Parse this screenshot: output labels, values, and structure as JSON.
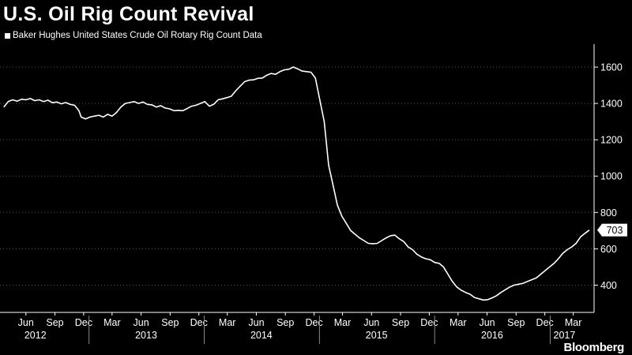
{
  "title": "U.S. Oil Rig Count Revival",
  "legend_label": "Baker Hughes United States Crude Oil Rotary Rig Count Data",
  "brand": "Bloomberg",
  "colors": {
    "background": "#000000",
    "line": "#ffffff",
    "grid": "#555555"
  },
  "chart_data": {
    "type": "line",
    "title": "U.S. Oil Rig Count Revival",
    "xlabel": "",
    "ylabel": "",
    "ylim": [
      250,
      1700
    ],
    "yticks": [
      400,
      600,
      800,
      1000,
      1200,
      1400,
      1600
    ],
    "grid": "horizontal dotted",
    "y_axis_position": "right",
    "last_value_label": "703",
    "month_ticks": [
      {
        "date": "2012-06",
        "label": "Jun"
      },
      {
        "date": "2012-09",
        "label": "Sep"
      },
      {
        "date": "2012-12",
        "label": "Dec"
      },
      {
        "date": "2013-03",
        "label": "Mar"
      },
      {
        "date": "2013-06",
        "label": "Jun"
      },
      {
        "date": "2013-09",
        "label": "Sep"
      },
      {
        "date": "2013-12",
        "label": "Dec"
      },
      {
        "date": "2014-03",
        "label": "Mar"
      },
      {
        "date": "2014-06",
        "label": "Jun"
      },
      {
        "date": "2014-09",
        "label": "Sep"
      },
      {
        "date": "2014-12",
        "label": "Dec"
      },
      {
        "date": "2015-03",
        "label": "Mar"
      },
      {
        "date": "2015-06",
        "label": "Jun"
      },
      {
        "date": "2015-09",
        "label": "Sep"
      },
      {
        "date": "2015-12",
        "label": "Dec"
      },
      {
        "date": "2016-03",
        "label": "Mar"
      },
      {
        "date": "2016-06",
        "label": "Jun"
      },
      {
        "date": "2016-09",
        "label": "Sep"
      },
      {
        "date": "2016-12",
        "label": "Dec"
      },
      {
        "date": "2017-03",
        "label": "Mar"
      }
    ],
    "year_labels": [
      {
        "date": "2012-07-15",
        "label": "2012"
      },
      {
        "date": "2013-07-01",
        "label": "2013"
      },
      {
        "date": "2014-07-01",
        "label": "2014"
      },
      {
        "date": "2015-07-01",
        "label": "2015"
      },
      {
        "date": "2016-07-01",
        "label": "2016"
      },
      {
        "date": "2017-02-15",
        "label": "2017"
      }
    ],
    "series": [
      {
        "points": [
          [
            "2012-04-06",
            1380
          ],
          [
            "2012-04-20",
            1410
          ],
          [
            "2012-05-04",
            1420
          ],
          [
            "2012-05-18",
            1412
          ],
          [
            "2012-06-01",
            1423
          ],
          [
            "2012-06-15",
            1420
          ],
          [
            "2012-06-29",
            1427
          ],
          [
            "2012-07-13",
            1415
          ],
          [
            "2012-07-27",
            1420
          ],
          [
            "2012-08-10",
            1410
          ],
          [
            "2012-08-24",
            1418
          ],
          [
            "2012-09-07",
            1404
          ],
          [
            "2012-09-21",
            1408
          ],
          [
            "2012-10-05",
            1398
          ],
          [
            "2012-10-19",
            1405
          ],
          [
            "2012-11-02",
            1395
          ],
          [
            "2012-11-16",
            1390
          ],
          [
            "2012-11-30",
            1360
          ],
          [
            "2012-12-07",
            1325
          ],
          [
            "2012-12-21",
            1315
          ],
          [
            "2013-01-04",
            1325
          ],
          [
            "2013-01-18",
            1330
          ],
          [
            "2013-02-01",
            1335
          ],
          [
            "2013-02-15",
            1325
          ],
          [
            "2013-03-01",
            1340
          ],
          [
            "2013-03-15",
            1330
          ],
          [
            "2013-03-29",
            1350
          ],
          [
            "2013-04-12",
            1380
          ],
          [
            "2013-04-26",
            1400
          ],
          [
            "2013-05-10",
            1405
          ],
          [
            "2013-05-24",
            1410
          ],
          [
            "2013-06-07",
            1400
          ],
          [
            "2013-06-21",
            1408
          ],
          [
            "2013-07-05",
            1395
          ],
          [
            "2013-07-19",
            1392
          ],
          [
            "2013-08-02",
            1380
          ],
          [
            "2013-08-16",
            1388
          ],
          [
            "2013-08-30",
            1375
          ],
          [
            "2013-09-13",
            1370
          ],
          [
            "2013-09-27",
            1360
          ],
          [
            "2013-10-11",
            1362
          ],
          [
            "2013-10-25",
            1360
          ],
          [
            "2013-11-08",
            1372
          ],
          [
            "2013-11-22",
            1385
          ],
          [
            "2013-12-06",
            1390
          ],
          [
            "2013-12-20",
            1400
          ],
          [
            "2014-01-03",
            1410
          ],
          [
            "2014-01-17",
            1385
          ],
          [
            "2014-01-31",
            1395
          ],
          [
            "2014-02-14",
            1420
          ],
          [
            "2014-02-28",
            1425
          ],
          [
            "2014-03-14",
            1432
          ],
          [
            "2014-03-28",
            1440
          ],
          [
            "2014-04-11",
            1470
          ],
          [
            "2014-04-25",
            1495
          ],
          [
            "2014-05-09",
            1520
          ],
          [
            "2014-05-23",
            1528
          ],
          [
            "2014-06-06",
            1530
          ],
          [
            "2014-06-20",
            1538
          ],
          [
            "2014-07-04",
            1540
          ],
          [
            "2014-07-18",
            1555
          ],
          [
            "2014-08-01",
            1565
          ],
          [
            "2014-08-15",
            1560
          ],
          [
            "2014-08-29",
            1575
          ],
          [
            "2014-09-12",
            1585
          ],
          [
            "2014-09-26",
            1588
          ],
          [
            "2014-10-10",
            1600
          ],
          [
            "2014-10-24",
            1590
          ],
          [
            "2014-11-07",
            1578
          ],
          [
            "2014-11-21",
            1575
          ],
          [
            "2014-12-05",
            1572
          ],
          [
            "2014-12-19",
            1540
          ],
          [
            "2015-01-02",
            1420
          ],
          [
            "2015-01-16",
            1300
          ],
          [
            "2015-01-30",
            1060
          ],
          [
            "2015-02-13",
            950
          ],
          [
            "2015-02-27",
            840
          ],
          [
            "2015-03-13",
            780
          ],
          [
            "2015-03-27",
            740
          ],
          [
            "2015-04-10",
            700
          ],
          [
            "2015-04-24",
            680
          ],
          [
            "2015-05-08",
            660
          ],
          [
            "2015-05-22",
            645
          ],
          [
            "2015-06-05",
            630
          ],
          [
            "2015-06-19",
            628
          ],
          [
            "2015-07-03",
            630
          ],
          [
            "2015-07-17",
            645
          ],
          [
            "2015-07-31",
            660
          ],
          [
            "2015-08-14",
            672
          ],
          [
            "2015-08-28",
            675
          ],
          [
            "2015-09-11",
            655
          ],
          [
            "2015-09-25",
            640
          ],
          [
            "2015-10-09",
            610
          ],
          [
            "2015-10-23",
            595
          ],
          [
            "2015-11-06",
            570
          ],
          [
            "2015-11-20",
            555
          ],
          [
            "2015-12-04",
            545
          ],
          [
            "2015-12-18",
            540
          ],
          [
            "2016-01-01",
            525
          ],
          [
            "2016-01-15",
            520
          ],
          [
            "2016-01-29",
            500
          ],
          [
            "2016-02-12",
            460
          ],
          [
            "2016-02-26",
            420
          ],
          [
            "2016-03-11",
            390
          ],
          [
            "2016-03-25",
            372
          ],
          [
            "2016-04-08",
            360
          ],
          [
            "2016-04-22",
            350
          ],
          [
            "2016-05-06",
            332
          ],
          [
            "2016-05-20",
            325
          ],
          [
            "2016-06-03",
            318
          ],
          [
            "2016-06-17",
            320
          ],
          [
            "2016-07-01",
            330
          ],
          [
            "2016-07-15",
            342
          ],
          [
            "2016-07-29",
            360
          ],
          [
            "2016-08-12",
            375
          ],
          [
            "2016-08-26",
            390
          ],
          [
            "2016-09-09",
            400
          ],
          [
            "2016-09-23",
            405
          ],
          [
            "2016-10-07",
            410
          ],
          [
            "2016-10-21",
            420
          ],
          [
            "2016-11-04",
            430
          ],
          [
            "2016-11-18",
            440
          ],
          [
            "2016-12-02",
            460
          ],
          [
            "2016-12-16",
            480
          ],
          [
            "2016-12-30",
            500
          ],
          [
            "2017-01-13",
            520
          ],
          [
            "2017-01-27",
            545
          ],
          [
            "2017-02-10",
            575
          ],
          [
            "2017-02-24",
            595
          ],
          [
            "2017-03-10",
            610
          ],
          [
            "2017-03-24",
            630
          ],
          [
            "2017-04-07",
            665
          ],
          [
            "2017-04-21",
            685
          ],
          [
            "2017-05-05",
            703
          ]
        ]
      }
    ]
  }
}
